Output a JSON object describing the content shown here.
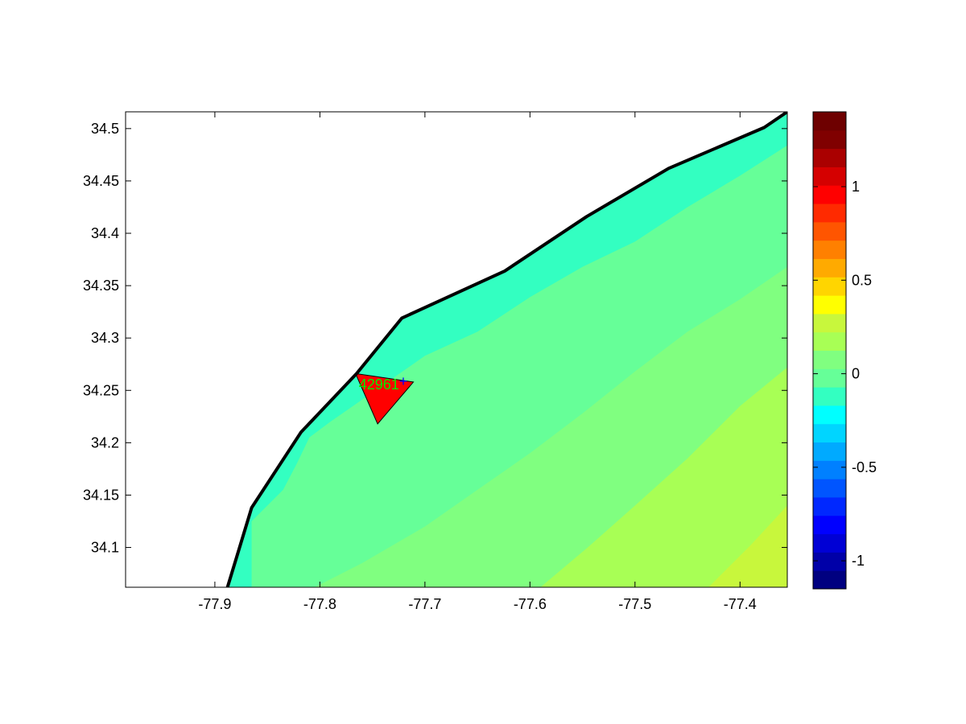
{
  "chart_data": {
    "type": "heatmap",
    "title": "",
    "xlabel": "",
    "ylabel": "",
    "xlim": [
      -77.985,
      -77.355
    ],
    "ylim": [
      34.062,
      34.516
    ],
    "x_ticks": [
      -77.9,
      -77.8,
      -77.7,
      -77.6,
      -77.5,
      -77.4
    ],
    "y_ticks": [
      34.1,
      34.15,
      34.2,
      34.25,
      34.3,
      34.35,
      34.4,
      34.45,
      34.5
    ],
    "x_tick_labels": [
      "-77.9",
      "-77.8",
      "-77.7",
      "-77.6",
      "-77.5",
      "-77.4"
    ],
    "y_tick_labels": [
      "34.1",
      "34.15",
      "34.2",
      "34.25",
      "34.3",
      "34.35",
      "34.4",
      "34.45",
      "34.5"
    ],
    "grid": false,
    "coastline": [
      [
        -77.888,
        34.062
      ],
      [
        -77.865,
        34.138
      ],
      [
        -77.818,
        34.21
      ],
      [
        -77.765,
        34.266
      ],
      [
        -77.722,
        34.319
      ],
      [
        -77.624,
        34.364
      ],
      [
        -77.546,
        34.416
      ],
      [
        -77.468,
        34.462
      ],
      [
        -77.377,
        34.501
      ],
      [
        -77.355,
        34.516
      ]
    ],
    "contour_bands": [
      {
        "level_range": [
          -0.05,
          0.05
        ],
        "color": "#33ffc1",
        "upper_boundary": [
          [
            -77.865,
            34.125
          ],
          [
            -77.835,
            34.155
          ],
          [
            -77.822,
            34.18
          ],
          [
            -77.81,
            34.205
          ],
          [
            -77.79,
            34.22
          ],
          [
            -77.74,
            34.255
          ],
          [
            -77.7,
            34.283
          ],
          [
            -77.65,
            34.306
          ],
          [
            -77.6,
            34.339
          ],
          [
            -77.55,
            34.368
          ],
          [
            -77.5,
            34.392
          ],
          [
            -77.45,
            34.425
          ],
          [
            -77.4,
            34.455
          ],
          [
            -77.355,
            34.484
          ]
        ]
      },
      {
        "level_range": [
          0.05,
          0.15
        ],
        "color": "#66ff98",
        "upper_boundary": [
          [
            -77.805,
            34.062
          ],
          [
            -77.76,
            34.085
          ],
          [
            -77.7,
            34.12
          ],
          [
            -77.65,
            34.155
          ],
          [
            -77.6,
            34.19
          ],
          [
            -77.55,
            34.228
          ],
          [
            -77.5,
            34.268
          ],
          [
            -77.45,
            34.306
          ],
          [
            -77.4,
            34.337
          ],
          [
            -77.355,
            34.368
          ]
        ]
      },
      {
        "level_range": [
          0.15,
          0.25
        ],
        "color": "#80ff80",
        "upper_boundary": [
          [
            -77.59,
            34.062
          ],
          [
            -77.545,
            34.1
          ],
          [
            -77.5,
            34.14
          ],
          [
            -77.45,
            34.185
          ],
          [
            -77.4,
            34.235
          ],
          [
            -77.355,
            34.272
          ]
        ]
      },
      {
        "level_range": [
          0.25,
          0.35
        ],
        "color": "#a8ff55",
        "upper_boundary": [
          [
            -77.43,
            34.062
          ],
          [
            -77.39,
            34.102
          ],
          [
            -77.355,
            34.14
          ]
        ]
      },
      {
        "level_range": [
          0.35,
          0.45
        ],
        "color": "#c8f73c",
        "upper_boundary": []
      }
    ],
    "marker": {
      "label": "42961",
      "label_color": "#00ee00",
      "symbol": "+",
      "symbol_color": "#0000ff",
      "location": [
        -77.72,
        34.258
      ],
      "fill_color": "#ff0000",
      "triangle": [
        [
          -77.766,
          34.266
        ],
        [
          -77.711,
          34.258
        ],
        [
          -77.745,
          34.218
        ]
      ]
    },
    "colorbar": {
      "range": [
        -1.15,
        1.4
      ],
      "ticks": [
        -1,
        -0.5,
        0,
        0.5,
        1
      ],
      "tick_labels": [
        "-1",
        "-0.5",
        "0",
        "0.5",
        "1"
      ],
      "colors": [
        "#000080",
        "#0000a8",
        "#0000d5",
        "#0000ff",
        "#0028ff",
        "#0055ff",
        "#0080ff",
        "#00aaff",
        "#00d5ff",
        "#00ffff",
        "#33ffc1",
        "#66ff98",
        "#80ff80",
        "#a8ff55",
        "#c8f73c",
        "#ffff00",
        "#ffd500",
        "#ffaa00",
        "#ff8000",
        "#ff5500",
        "#ff2a00",
        "#ff0000",
        "#d50000",
        "#aa0000",
        "#800000",
        "#6e0000"
      ]
    }
  }
}
